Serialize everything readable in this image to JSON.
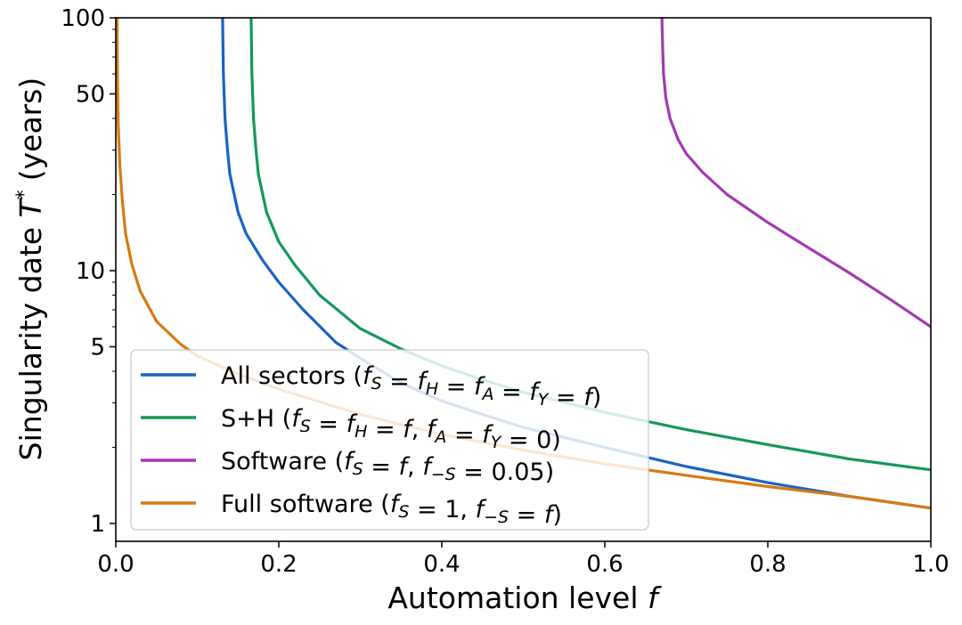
{
  "chart_data": {
    "type": "line",
    "xlabel": "Automation level",
    "xlabel_var": "f",
    "ylabel": "Singularity date",
    "ylabel_var": "T",
    "ylabel_sup": "*",
    "ylabel_unit": "(years)",
    "xlim": [
      0.0,
      1.0
    ],
    "ylim": [
      0.85,
      100
    ],
    "yscale": "log",
    "x_ticks": [
      0.0,
      0.2,
      0.4,
      0.6,
      0.8,
      1.0
    ],
    "x_tick_labels": [
      "0.0",
      "0.2",
      "0.4",
      "0.6",
      "0.8",
      "1.0"
    ],
    "y_ticks": [
      1,
      5,
      10,
      50,
      100
    ],
    "y_tick_labels": [
      "1",
      "5",
      "10",
      "50",
      "100"
    ],
    "grid": false,
    "legend_position": "lower-left",
    "series": [
      {
        "name": "All sectors (f_S = f_H = f_A = f_Y = f)",
        "legend_plain": "All sectors (",
        "legend_math": [
          [
            "f",
            "S"
          ],
          "=",
          [
            "f",
            "H"
          ],
          "=",
          [
            "f",
            "A"
          ],
          "=",
          [
            "f",
            "Y"
          ],
          "=",
          [
            "f",
            ""
          ],
          ")"
        ],
        "color": "#1a63c2",
        "x": [
          0.131,
          0.132,
          0.134,
          0.137,
          0.14,
          0.15,
          0.16,
          0.18,
          0.2,
          0.23,
          0.27,
          0.3,
          0.35,
          0.4,
          0.45,
          0.5,
          0.6,
          0.7,
          0.8,
          0.9,
          1.0
        ],
        "y": [
          100,
          60,
          40,
          30,
          24,
          17,
          14,
          11,
          9,
          7,
          5.2,
          4.5,
          3.6,
          3.05,
          2.7,
          2.4,
          2.0,
          1.68,
          1.45,
          1.28,
          1.15
        ]
      },
      {
        "name": "S+H (f_S = f_H = f, f_A = f_Y = 0)",
        "legend_plain": "S+H (",
        "color": "#16975a",
        "x": [
          0.166,
          0.167,
          0.169,
          0.172,
          0.175,
          0.185,
          0.2,
          0.22,
          0.25,
          0.3,
          0.35,
          0.4,
          0.45,
          0.5,
          0.6,
          0.7,
          0.8,
          0.9,
          1.0
        ],
        "y": [
          100,
          60,
          40,
          30,
          24,
          17,
          13,
          10.5,
          8,
          5.9,
          4.9,
          4.2,
          3.7,
          3.3,
          2.75,
          2.35,
          2.05,
          1.8,
          1.63
        ]
      },
      {
        "name": "Software (f_S = f, f_-S = 0.05)",
        "legend_plain": "Software (",
        "color": "#a33ab1",
        "x": [
          0.67,
          0.671,
          0.672,
          0.675,
          0.68,
          0.69,
          0.7,
          0.72,
          0.75,
          0.8,
          0.85,
          0.9,
          0.95,
          1.0
        ],
        "y": [
          100,
          75,
          60,
          48,
          40,
          33,
          29,
          24.5,
          20,
          15.5,
          12.3,
          9.8,
          7.7,
          6.0
        ]
      },
      {
        "name": "Full software (f_S = 1, f_-S = f)",
        "legend_plain": "Full software (",
        "color": "#d67b12",
        "x": [
          0.0015,
          0.002,
          0.003,
          0.005,
          0.008,
          0.012,
          0.02,
          0.03,
          0.05,
          0.08,
          0.1,
          0.15,
          0.2,
          0.3,
          0.4,
          0.5,
          0.6,
          0.7,
          0.8,
          0.9,
          1.0
        ],
        "y": [
          100,
          60,
          38,
          26,
          19,
          14,
          10.5,
          8.3,
          6.3,
          5.1,
          4.6,
          3.9,
          3.4,
          2.7,
          2.25,
          1.95,
          1.72,
          1.55,
          1.4,
          1.28,
          1.15
        ]
      }
    ]
  },
  "legend": {
    "items": [
      {
        "prefix": "All sectors (",
        "suffix": ")"
      },
      {
        "prefix": "S+H (",
        "suffix": ")"
      },
      {
        "prefix": "Software (",
        "suffix": ")"
      },
      {
        "prefix": "Full software (",
        "suffix": ")"
      }
    ]
  }
}
